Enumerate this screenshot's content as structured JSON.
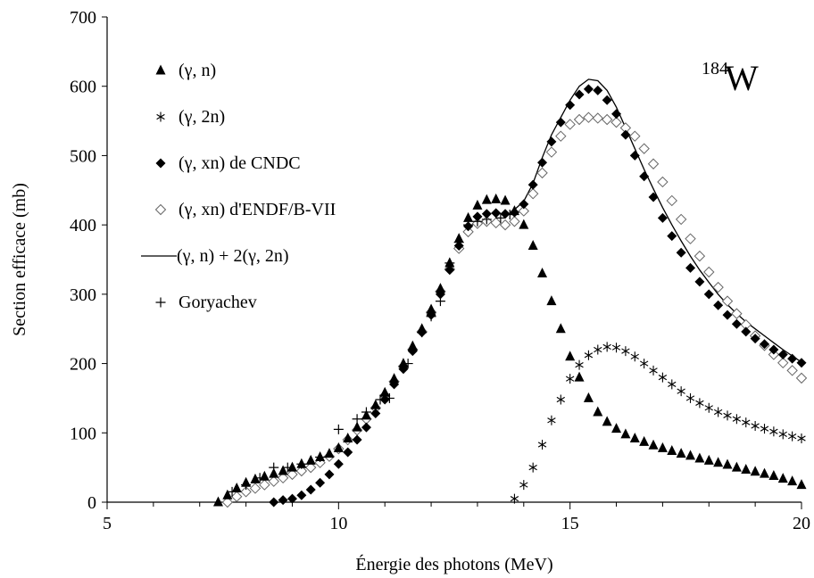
{
  "chart_data": {
    "type": "scatter",
    "annotation": {
      "mass": "184",
      "element": "W"
    },
    "xlabel": "Énergie des photons (MeV)",
    "ylabel": "Section efficace (mb)",
    "xlim": [
      5,
      20
    ],
    "ylim": [
      0,
      700
    ],
    "x_ticks": [
      5,
      10,
      15,
      20
    ],
    "x_minor_step": 1,
    "y_ticks": [
      0,
      100,
      200,
      300,
      400,
      500,
      600,
      700
    ],
    "grid": false,
    "legend_position": "top-left",
    "series": [
      {
        "name": "(γ, n)",
        "marker": "triangle",
        "points": [
          [
            7.4,
            0
          ],
          [
            7.6,
            10
          ],
          [
            7.8,
            20
          ],
          [
            8.0,
            28
          ],
          [
            8.2,
            33
          ],
          [
            8.4,
            37
          ],
          [
            8.6,
            41
          ],
          [
            8.8,
            45
          ],
          [
            9.0,
            50
          ],
          [
            9.2,
            55
          ],
          [
            9.4,
            60
          ],
          [
            9.6,
            65
          ],
          [
            9.8,
            70
          ],
          [
            10.0,
            78
          ],
          [
            10.2,
            92
          ],
          [
            10.4,
            108
          ],
          [
            10.6,
            125
          ],
          [
            10.8,
            140
          ],
          [
            11.0,
            158
          ],
          [
            11.2,
            178
          ],
          [
            11.4,
            200
          ],
          [
            11.6,
            225
          ],
          [
            11.8,
            250
          ],
          [
            12.0,
            278
          ],
          [
            12.2,
            308
          ],
          [
            12.4,
            345
          ],
          [
            12.6,
            380
          ],
          [
            12.8,
            410
          ],
          [
            13.0,
            428
          ],
          [
            13.2,
            436
          ],
          [
            13.4,
            437
          ],
          [
            13.6,
            435
          ],
          [
            13.8,
            420
          ],
          [
            14.0,
            400
          ],
          [
            14.2,
            370
          ],
          [
            14.4,
            330
          ],
          [
            14.6,
            290
          ],
          [
            14.8,
            250
          ],
          [
            15.0,
            210
          ],
          [
            15.2,
            180
          ],
          [
            15.4,
            150
          ],
          [
            15.6,
            130
          ],
          [
            15.8,
            116
          ],
          [
            16.0,
            106
          ],
          [
            16.2,
            98
          ],
          [
            16.4,
            92
          ],
          [
            16.6,
            87
          ],
          [
            16.8,
            82
          ],
          [
            17.0,
            78
          ],
          [
            17.2,
            74
          ],
          [
            17.4,
            70
          ],
          [
            17.6,
            67
          ],
          [
            17.8,
            63
          ],
          [
            18.0,
            60
          ],
          [
            18.2,
            57
          ],
          [
            18.4,
            54
          ],
          [
            18.6,
            50
          ],
          [
            18.8,
            47
          ],
          [
            19.0,
            44
          ],
          [
            19.2,
            41
          ],
          [
            19.4,
            38
          ],
          [
            19.6,
            34
          ],
          [
            19.8,
            30
          ],
          [
            20.0,
            25
          ]
        ]
      },
      {
        "name": "(γ, 2n)",
        "marker": "asterisk",
        "points": [
          [
            13.8,
            5
          ],
          [
            14.0,
            25
          ],
          [
            14.2,
            50
          ],
          [
            14.4,
            83
          ],
          [
            14.6,
            118
          ],
          [
            14.8,
            148
          ],
          [
            15.0,
            178
          ],
          [
            15.2,
            198
          ],
          [
            15.4,
            212
          ],
          [
            15.6,
            220
          ],
          [
            15.8,
            224
          ],
          [
            16.0,
            223
          ],
          [
            16.2,
            218
          ],
          [
            16.4,
            210
          ],
          [
            16.6,
            200
          ],
          [
            16.8,
            190
          ],
          [
            17.0,
            180
          ],
          [
            17.2,
            170
          ],
          [
            17.4,
            160
          ],
          [
            17.6,
            150
          ],
          [
            17.8,
            143
          ],
          [
            18.0,
            136
          ],
          [
            18.2,
            130
          ],
          [
            18.4,
            125
          ],
          [
            18.6,
            120
          ],
          [
            18.8,
            115
          ],
          [
            19.0,
            110
          ],
          [
            19.2,
            106
          ],
          [
            19.4,
            102
          ],
          [
            19.6,
            98
          ],
          [
            19.8,
            95
          ],
          [
            20.0,
            92
          ]
        ]
      },
      {
        "name": "(γ, xn) de CNDC",
        "marker": "diamond-filled",
        "points": [
          [
            8.6,
            0
          ],
          [
            8.8,
            3
          ],
          [
            9.0,
            5
          ],
          [
            9.2,
            10
          ],
          [
            9.4,
            18
          ],
          [
            9.6,
            28
          ],
          [
            9.8,
            40
          ],
          [
            10.0,
            55
          ],
          [
            10.2,
            72
          ],
          [
            10.4,
            90
          ],
          [
            10.6,
            108
          ],
          [
            10.8,
            128
          ],
          [
            11.0,
            148
          ],
          [
            11.2,
            170
          ],
          [
            11.4,
            192
          ],
          [
            11.6,
            218
          ],
          [
            11.8,
            245
          ],
          [
            12.0,
            270
          ],
          [
            12.2,
            300
          ],
          [
            12.4,
            335
          ],
          [
            12.6,
            370
          ],
          [
            12.8,
            398
          ],
          [
            13.0,
            412
          ],
          [
            13.2,
            416
          ],
          [
            13.4,
            417
          ],
          [
            13.6,
            416
          ],
          [
            13.8,
            418
          ],
          [
            14.0,
            430
          ],
          [
            14.2,
            458
          ],
          [
            14.4,
            490
          ],
          [
            14.6,
            520
          ],
          [
            14.8,
            548
          ],
          [
            15.0,
            573
          ],
          [
            15.2,
            588
          ],
          [
            15.4,
            596
          ],
          [
            15.6,
            594
          ],
          [
            15.8,
            580
          ],
          [
            16.0,
            560
          ],
          [
            16.2,
            530
          ],
          [
            16.4,
            500
          ],
          [
            16.6,
            470
          ],
          [
            16.8,
            440
          ],
          [
            17.0,
            410
          ],
          [
            17.2,
            384
          ],
          [
            17.4,
            360
          ],
          [
            17.6,
            338
          ],
          [
            17.8,
            318
          ],
          [
            18.0,
            300
          ],
          [
            18.2,
            284
          ],
          [
            18.4,
            270
          ],
          [
            18.6,
            257
          ],
          [
            18.8,
            246
          ],
          [
            19.0,
            236
          ],
          [
            19.2,
            228
          ],
          [
            19.4,
            220
          ],
          [
            19.6,
            213
          ],
          [
            19.8,
            207
          ],
          [
            20.0,
            201
          ]
        ]
      },
      {
        "name": "(γ, xn) d'ENDF/B-VII",
        "marker": "diamond-open",
        "points": [
          [
            7.6,
            0
          ],
          [
            7.8,
            8
          ],
          [
            8.0,
            15
          ],
          [
            8.2,
            20
          ],
          [
            8.4,
            25
          ],
          [
            8.6,
            30
          ],
          [
            8.8,
            35
          ],
          [
            9.0,
            40
          ],
          [
            9.2,
            45
          ],
          [
            9.4,
            50
          ],
          [
            9.6,
            57
          ],
          [
            9.8,
            66
          ],
          [
            10.0,
            77
          ],
          [
            10.2,
            90
          ],
          [
            10.4,
            104
          ],
          [
            10.6,
            120
          ],
          [
            10.8,
            136
          ],
          [
            11.0,
            154
          ],
          [
            11.2,
            174
          ],
          [
            11.4,
            196
          ],
          [
            11.6,
            220
          ],
          [
            11.8,
            246
          ],
          [
            12.0,
            274
          ],
          [
            12.2,
            304
          ],
          [
            12.4,
            336
          ],
          [
            12.6,
            366
          ],
          [
            12.8,
            390
          ],
          [
            13.0,
            402
          ],
          [
            13.2,
            405
          ],
          [
            13.4,
            403
          ],
          [
            13.6,
            400
          ],
          [
            13.8,
            405
          ],
          [
            14.0,
            420
          ],
          [
            14.2,
            445
          ],
          [
            14.4,
            475
          ],
          [
            14.6,
            505
          ],
          [
            14.8,
            528
          ],
          [
            15.0,
            545
          ],
          [
            15.2,
            552
          ],
          [
            15.4,
            555
          ],
          [
            15.6,
            554
          ],
          [
            15.8,
            552
          ],
          [
            16.0,
            548
          ],
          [
            16.2,
            540
          ],
          [
            16.4,
            528
          ],
          [
            16.6,
            510
          ],
          [
            16.8,
            488
          ],
          [
            17.0,
            462
          ],
          [
            17.2,
            435
          ],
          [
            17.4,
            408
          ],
          [
            17.6,
            380
          ],
          [
            17.8,
            355
          ],
          [
            18.0,
            332
          ],
          [
            18.2,
            310
          ],
          [
            18.4,
            290
          ],
          [
            18.6,
            272
          ],
          [
            18.8,
            256
          ],
          [
            19.0,
            240
          ],
          [
            19.2,
            226
          ],
          [
            19.4,
            213
          ],
          [
            19.6,
            201
          ],
          [
            19.8,
            190
          ],
          [
            20.0,
            179
          ]
        ]
      },
      {
        "name": "(γ, n) + 2(γ, 2n)",
        "marker": "line",
        "points": [
          [
            13.8,
            422
          ],
          [
            14.0,
            434
          ],
          [
            14.2,
            460
          ],
          [
            14.4,
            497
          ],
          [
            14.6,
            530
          ],
          [
            14.8,
            555
          ],
          [
            15.0,
            580
          ],
          [
            15.2,
            600
          ],
          [
            15.4,
            610
          ],
          [
            15.6,
            608
          ],
          [
            15.8,
            594
          ],
          [
            16.0,
            570
          ],
          [
            16.2,
            540
          ],
          [
            16.4,
            510
          ],
          [
            16.6,
            480
          ],
          [
            16.8,
            452
          ],
          [
            17.0,
            425
          ],
          [
            17.2,
            400
          ],
          [
            17.4,
            377
          ],
          [
            17.6,
            355
          ],
          [
            17.8,
            335
          ],
          [
            18.0,
            317
          ],
          [
            18.2,
            300
          ],
          [
            18.4,
            285
          ],
          [
            18.6,
            272
          ],
          [
            18.8,
            260
          ],
          [
            19.0,
            250
          ],
          [
            19.2,
            240
          ],
          [
            19.4,
            230
          ],
          [
            19.6,
            220
          ],
          [
            19.8,
            211
          ],
          [
            20.0,
            202
          ]
        ]
      },
      {
        "name": "Goryachev",
        "marker": "plus",
        "points": [
          [
            7.7,
            15
          ],
          [
            8.0,
            25
          ],
          [
            8.3,
            35
          ],
          [
            8.6,
            50
          ],
          [
            8.9,
            50
          ],
          [
            9.2,
            55
          ],
          [
            9.6,
            65
          ],
          [
            10.0,
            105
          ],
          [
            10.4,
            120
          ],
          [
            10.6,
            130
          ],
          [
            10.9,
            148
          ],
          [
            11.1,
            150
          ],
          [
            11.5,
            200
          ],
          [
            11.8,
            245
          ],
          [
            12.0,
            268
          ],
          [
            12.2,
            290
          ],
          [
            12.4,
            345
          ],
          [
            12.6,
            375
          ],
          [
            12.8,
            400
          ],
          [
            13.0,
            405
          ],
          [
            13.2,
            408
          ],
          [
            13.5,
            410
          ],
          [
            13.7,
            415
          ]
        ]
      }
    ]
  }
}
